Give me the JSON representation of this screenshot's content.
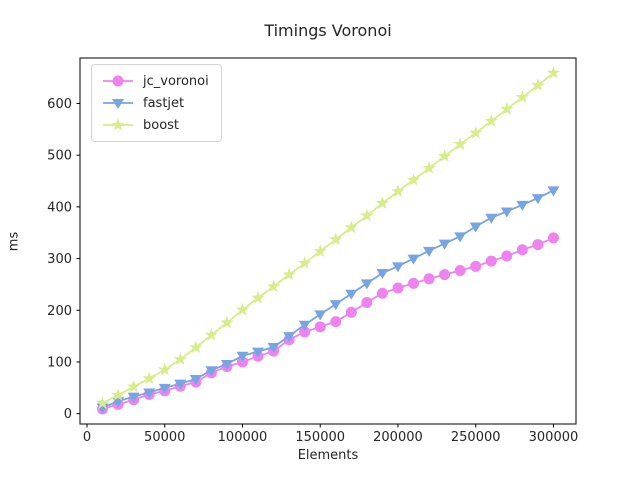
{
  "figure": {
    "background": "#ffffff"
  },
  "chart_data": {
    "type": "line",
    "title": "Timings Voronoi",
    "xlabel": "Elements",
    "ylabel": "ms",
    "grid": false,
    "legend_position": "upper left",
    "xlim": [
      -4500,
      314500
    ],
    "ylim": [
      -20,
      688
    ],
    "xticks": {
      "values": [
        0,
        50000,
        100000,
        150000,
        200000,
        250000,
        300000
      ],
      "labels": [
        "0",
        "50000",
        "100000",
        "150000",
        "200000",
        "250000",
        "300000"
      ]
    },
    "yticks": {
      "values": [
        0,
        100,
        200,
        300,
        400,
        500,
        600
      ],
      "labels": [
        "0",
        "100",
        "200",
        "300",
        "400",
        "500",
        "600"
      ]
    },
    "x": [
      10000,
      20000,
      30000,
      40000,
      50000,
      60000,
      70000,
      80000,
      90000,
      100000,
      110000,
      120000,
      130000,
      140000,
      150000,
      160000,
      170000,
      180000,
      190000,
      200000,
      210000,
      220000,
      230000,
      240000,
      250000,
      260000,
      270000,
      280000,
      290000,
      300000
    ],
    "series": [
      {
        "name": "jc_voronoi",
        "marker": "circle",
        "color": "#ee82ee",
        "values": [
          9,
          18,
          27,
          37,
          44,
          53,
          61,
          79,
          91,
          100,
          111,
          121,
          143,
          158,
          168,
          178,
          196,
          215,
          233,
          243,
          252,
          261,
          269,
          277,
          285,
          295,
          305,
          317,
          327,
          340
        ]
      },
      {
        "name": "fastjet",
        "marker": "triangle-down",
        "color": "#78a4e2",
        "values": [
          12,
          24,
          33,
          41,
          50,
          58,
          67,
          84,
          96,
          112,
          120,
          129,
          150,
          172,
          192,
          212,
          232,
          252,
          272,
          285,
          300,
          315,
          329,
          343,
          362,
          379,
          391,
          404,
          417,
          432
        ]
      },
      {
        "name": "boost",
        "marker": "star",
        "color": "#d7ec8b",
        "values": [
          20,
          36,
          52,
          68,
          85,
          105,
          128,
          152,
          176,
          201,
          224,
          246,
          269,
          291,
          314,
          337,
          360,
          383,
          407,
          430,
          452,
          475,
          498,
          521,
          543,
          566,
          589,
          612,
          635,
          659
        ]
      }
    ]
  }
}
